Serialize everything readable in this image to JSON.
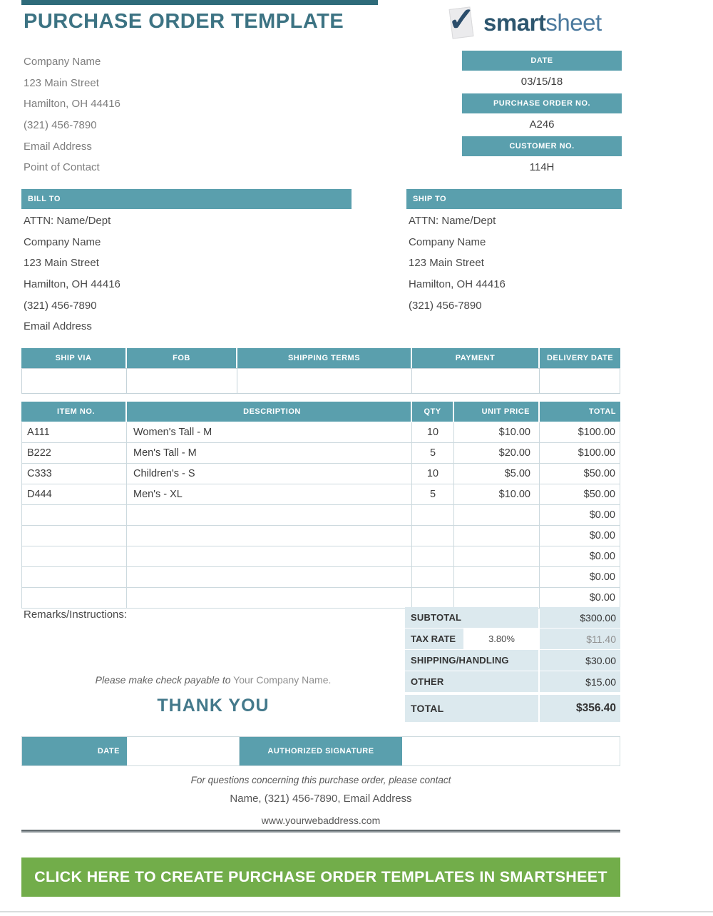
{
  "page": {
    "title": "PURCHASE ORDER TEMPLATE",
    "logo": {
      "check": "✓",
      "brand_left": "smart",
      "brand_right": "sheet"
    }
  },
  "company_info": {
    "lines": [
      "Company Name",
      "123 Main Street",
      "Hamilton, OH 44416",
      "(321) 456-7890",
      "Email Address",
      "Point of Contact"
    ]
  },
  "order_meta": [
    {
      "label": "DATE",
      "value": "03/15/18"
    },
    {
      "label": "PURCHASE ORDER NO.",
      "value": "A246"
    },
    {
      "label": "CUSTOMER NO.",
      "value": "114H"
    }
  ],
  "bill_to": {
    "header": "BILL TO",
    "lines": [
      "ATTN: Name/Dept",
      "Company Name",
      "123 Main Street",
      "Hamilton, OH 44416",
      "(321) 456-7890",
      "Email Address"
    ]
  },
  "ship_to": {
    "header": "SHIP TO",
    "lines": [
      "ATTN: Name/Dept",
      "Company Name",
      "123 Main Street",
      "Hamilton, OH 44416",
      "(321) 456-7890"
    ]
  },
  "shipping_table": {
    "headers": [
      "SHIP VIA",
      "FOB",
      "SHIPPING TERMS",
      "PAYMENT",
      "DELIVERY DATE"
    ],
    "row": [
      "",
      "",
      "",
      "",
      ""
    ]
  },
  "items_table": {
    "headers": [
      "ITEM NO.",
      "DESCRIPTION",
      "QTY",
      "UNIT PRICE",
      "TOTAL"
    ],
    "rows": [
      {
        "item_no": "A111",
        "description": "Women's Tall - M",
        "qty": "10",
        "unit_price": "$10.00",
        "total": "$100.00"
      },
      {
        "item_no": "B222",
        "description": "Men's Tall - M",
        "qty": "5",
        "unit_price": "$20.00",
        "total": "$100.00"
      },
      {
        "item_no": "C333",
        "description": "Children's - S",
        "qty": "10",
        "unit_price": "$5.00",
        "total": "$50.00"
      },
      {
        "item_no": "D444",
        "description": "Men's - XL",
        "qty": "5",
        "unit_price": "$10.00",
        "total": "$50.00"
      }
    ],
    "empty_row_totals": [
      "$0.00",
      "$0.00",
      "$0.00",
      "$0.00",
      "$0.00"
    ]
  },
  "remarks": {
    "label": "Remarks/Instructions:"
  },
  "totals": {
    "subtotal_label": "SUBTOTAL",
    "subtotal_value": "$300.00",
    "tax_label": "TAX RATE",
    "tax_rate": "3.80%",
    "tax_value": "$11.40",
    "shipping_label": "SHIPPING/HANDLING",
    "shipping_value": "$30.00",
    "other_label": "OTHER",
    "other_value": "$15.00",
    "total_label": "TOTAL",
    "total_value": "$356.40"
  },
  "notes": {
    "payable_italic": "Please make check payable to",
    "payable_rest": " Your Company Name.",
    "thank_you": "THANK YOU"
  },
  "signature": {
    "date_label": "DATE",
    "auth_label": "AUTHORIZED SIGNATURE"
  },
  "footer": {
    "contact_line1": "For questions concerning this purchase order, please contact",
    "contact_line2": "Name, (321) 456-7890, Email Address",
    "website": "www.yourwebaddress.com"
  },
  "cta": {
    "label": "CLICK HERE TO CREATE PURCHASE ORDER TEMPLATES IN SMARTSHEET"
  },
  "colors": {
    "teal_bar": "#5A9FAD",
    "title_teal": "#3C7383",
    "totals_bg": "#DCE9EE",
    "cta_green": "#72AD4A",
    "logo_navy": "#2D566E",
    "top_bar": "#2E6B7A"
  }
}
